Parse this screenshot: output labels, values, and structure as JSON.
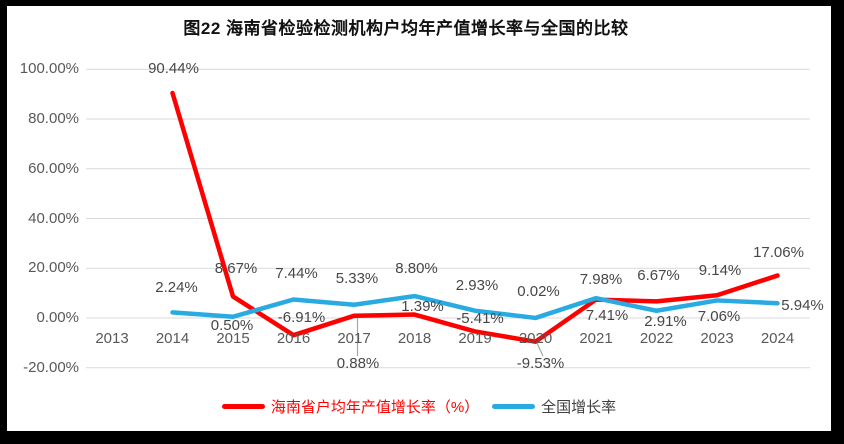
{
  "chart_data": {
    "type": "line",
    "title": "图22  海南省检验检测机构户均年产值增长率与全国的比较",
    "x_categories": [
      "2013",
      "2014",
      "2015",
      "2016",
      "2017",
      "2018",
      "2019",
      "2020",
      "2021",
      "2022",
      "2023",
      "2024"
    ],
    "y_axis": {
      "ticks": [
        {
          "label": "100.00%",
          "value": 100
        },
        {
          "label": "80.00%",
          "value": 80
        },
        {
          "label": "60.00%",
          "value": 60
        },
        {
          "label": "40.00%",
          "value": 40
        },
        {
          "label": "20.00%",
          "value": 20
        },
        {
          "label": "0.00%",
          "value": 0
        },
        {
          "label": "-20.00%",
          "value": -20
        }
      ],
      "ylim": [
        -20,
        100
      ]
    },
    "grid": true,
    "grid_color": "#D9D9D9",
    "leader_line_color": "#A6A6A6",
    "legend_position": "bottom",
    "series": [
      {
        "name": "海南省户均年产值增长率（%）",
        "color": "#FF0000",
        "legend_text_color": "#FF0000",
        "values": [
          null,
          90.44,
          8.67,
          -6.91,
          0.88,
          1.39,
          -5.41,
          -9.53,
          7.41,
          6.67,
          9.14,
          17.06
        ],
        "labels": [
          null,
          "90.44%",
          "8.67%",
          "-6.91%",
          "0.88%",
          "1.39%",
          "-5.41%",
          "-9.53%",
          "7.41%",
          "6.67%",
          "9.14%",
          "17.06%"
        ],
        "label_offsets": [
          null,
          [
            1,
            -24
          ],
          [
            3,
            -27
          ],
          [
            8,
            -17
          ],
          [
            4,
            48
          ],
          [
            8,
            -8
          ],
          [
            5,
            -12
          ],
          [
            5,
            22
          ],
          [
            11,
            16
          ],
          [
            2,
            -25
          ],
          [
            3,
            -24
          ],
          [
            1,
            -23
          ]
        ]
      },
      {
        "name": "全国增长率",
        "color": "#29ABE2",
        "legend_text_color": "#3F3F3F",
        "values": [
          null,
          2.24,
          0.5,
          7.44,
          5.33,
          8.8,
          2.93,
          0.02,
          7.98,
          2.91,
          7.06,
          5.94
        ],
        "labels": [
          null,
          "2.24%",
          "0.50%",
          "7.44%",
          "5.33%",
          "8.80%",
          "2.93%",
          "0.02%",
          "7.98%",
          "2.91%",
          "7.06%",
          "5.94%"
        ],
        "label_offsets": [
          null,
          [
            4,
            -24
          ],
          [
            -1,
            9
          ],
          [
            3,
            -25
          ],
          [
            3,
            -26
          ],
          [
            2,
            -27
          ],
          [
            2,
            -25
          ],
          [
            3,
            -26
          ],
          [
            5,
            -18
          ],
          [
            9,
            11
          ],
          [
            2,
            17
          ],
          [
            25,
            3
          ]
        ]
      }
    ]
  }
}
